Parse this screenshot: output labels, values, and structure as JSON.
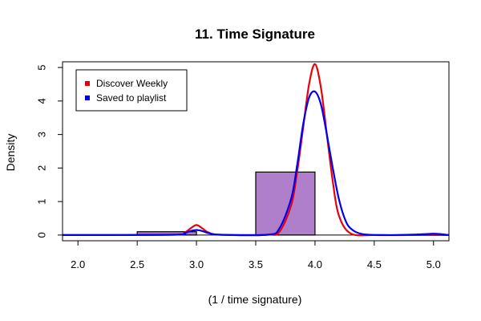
{
  "chart_data": {
    "type": "area",
    "title": "11. Time Signature",
    "xlabel": "(1 / time signature)",
    "ylabel": "Density",
    "xlim": [
      1.87,
      5.13
    ],
    "ylim": [
      -0.17,
      5.17
    ],
    "x_ticks": [
      "2.0",
      "2.5",
      "3.0",
      "3.5",
      "4.0",
      "4.5",
      "5.0"
    ],
    "y_ticks": [
      "0",
      "1",
      "2",
      "3",
      "4",
      "5"
    ],
    "grid": false,
    "legend_position": "top-left",
    "histogram": {
      "fill_color": "#b07fcc",
      "bins": [
        {
          "x0": 2.5,
          "x1": 3.0,
          "density": 0.1
        },
        {
          "x0": 3.0,
          "x1": 3.5,
          "density": 0.0
        },
        {
          "x0": 3.5,
          "x1": 4.0,
          "density": 1.88
        }
      ]
    },
    "series": [
      {
        "name": "Discover Weekly",
        "color": "#e8000b",
        "x": [
          1.87,
          2.8,
          2.9,
          2.95,
          3.0,
          3.05,
          3.1,
          3.2,
          3.6,
          3.7,
          3.8,
          3.85,
          3.9,
          3.95,
          4.0,
          4.05,
          4.1,
          4.15,
          4.2,
          4.3,
          4.5,
          4.8,
          5.0,
          5.13
        ],
        "values": [
          0.0,
          0.01,
          0.08,
          0.2,
          0.3,
          0.2,
          0.08,
          0.01,
          0.01,
          0.1,
          0.9,
          1.9,
          3.2,
          4.5,
          5.1,
          4.4,
          3.0,
          1.6,
          0.6,
          0.05,
          0.0,
          0.0,
          0.0,
          0.0
        ]
      },
      {
        "name": "Saved to playlist",
        "color": "#0000ee",
        "x": [
          1.87,
          2.8,
          2.9,
          2.95,
          3.0,
          3.05,
          3.1,
          3.2,
          3.6,
          3.7,
          3.8,
          3.85,
          3.9,
          3.95,
          4.0,
          4.05,
          4.1,
          4.15,
          4.2,
          4.25,
          4.3,
          4.4,
          4.6,
          4.8,
          4.95,
          5.0,
          5.05,
          5.13
        ],
        "values": [
          0.0,
          0.01,
          0.06,
          0.12,
          0.15,
          0.12,
          0.06,
          0.01,
          0.01,
          0.2,
          1.1,
          2.1,
          3.3,
          4.1,
          4.28,
          3.9,
          3.0,
          2.0,
          1.1,
          0.5,
          0.2,
          0.03,
          0.0,
          0.01,
          0.03,
          0.04,
          0.03,
          0.0
        ]
      }
    ]
  }
}
